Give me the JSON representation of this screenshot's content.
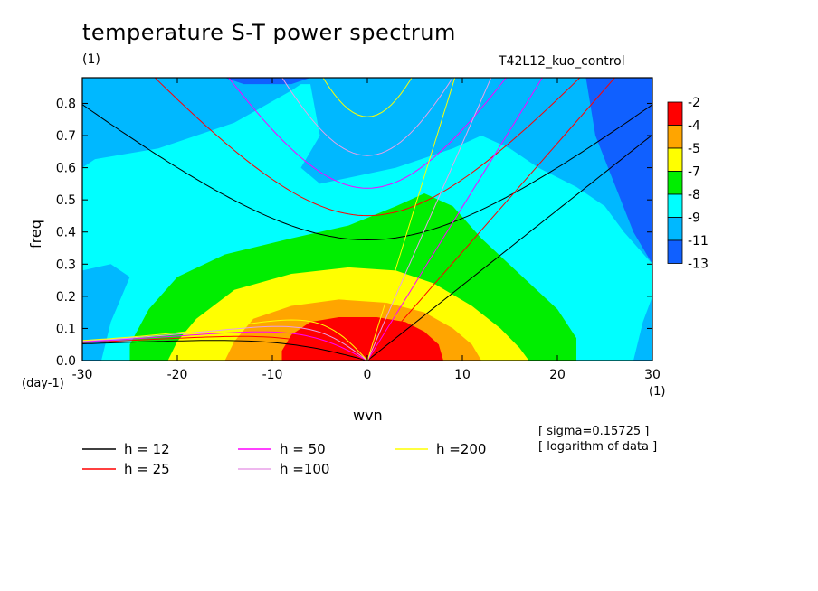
{
  "header": {
    "title": "temperature S-T power spectrum",
    "title_unit": "(1)",
    "run_name": "T42L12_kuo_control"
  },
  "axes": {
    "xlabel": "wvn",
    "ylabel": "freq",
    "x_unit": "(1)",
    "y_unit": "(day-1)"
  },
  "notes": {
    "sigma": "[ sigma=0.15725 ]",
    "log": "[ logarithm of data ]"
  },
  "chart_data": {
    "type": "heatmap",
    "title": "temperature S-T power spectrum",
    "xlabel": "wvn",
    "ylabel": "freq",
    "xlim": [
      -30,
      30
    ],
    "ylim": [
      0,
      0.88
    ],
    "x_ticks": [
      -30,
      -20,
      -10,
      0,
      10,
      20,
      30
    ],
    "y_ticks": [
      0.0,
      0.1,
      0.2,
      0.3,
      0.4,
      0.5,
      0.6,
      0.7,
      0.8
    ],
    "colorbar": {
      "levels": [
        "-2",
        "-4",
        "-5",
        "-7",
        "-8",
        "-9",
        "-11",
        "-13"
      ],
      "colors": [
        "#ff0000",
        "#ffa500",
        "#ffff00",
        "#00ee00",
        "#00ffff",
        "#00b8ff",
        "#1060ff"
      ]
    },
    "field": {
      "peak": {
        "x": 0,
        "y": 0.02
      },
      "zones": [
        {
          "range": "-2..-4",
          "color": "#ff0000",
          "x": [
            -9,
            8
          ],
          "y": [
            0,
            0.14
          ]
        },
        {
          "range": "-4..-5",
          "color": "#ffa500",
          "x": [
            -15,
            12
          ],
          "y": [
            0,
            0.2
          ]
        },
        {
          "range": "-5..-7",
          "color": "#ffff00",
          "x": [
            -21,
            17
          ],
          "y": [
            0,
            0.3
          ]
        },
        {
          "range": "-7..-8",
          "color": "#00ee00",
          "x": [
            -25,
            22
          ],
          "y": [
            0,
            0.52
          ]
        },
        {
          "range": "-8..-9",
          "color": "#00ffff",
          "x": [
            -30,
            29
          ],
          "y": [
            0,
            0.88
          ]
        },
        {
          "range": "-9..-11",
          "color": "#00b8ff",
          "x": [
            -30,
            30
          ],
          "y": [
            0.25,
            0.88
          ]
        },
        {
          "range": "-11..-13",
          "color": "#1060ff",
          "x": [
            23,
            30
          ],
          "y": [
            0.3,
            0.88
          ]
        }
      ]
    },
    "dispersion_curves": [
      {
        "name": "h = 12",
        "h": 12,
        "color": "#000000"
      },
      {
        "name": "h = 25",
        "h": 25,
        "color": "#ff0000"
      },
      {
        "name": "h = 50",
        "h": 50,
        "color": "#ff00ff"
      },
      {
        "name": "h =100",
        "h": 100,
        "color": "#e8a0e8"
      },
      {
        "name": "h =200",
        "h": 200,
        "color": "#ffff00"
      }
    ],
    "grid": false,
    "legend_position": "bottom-left"
  }
}
